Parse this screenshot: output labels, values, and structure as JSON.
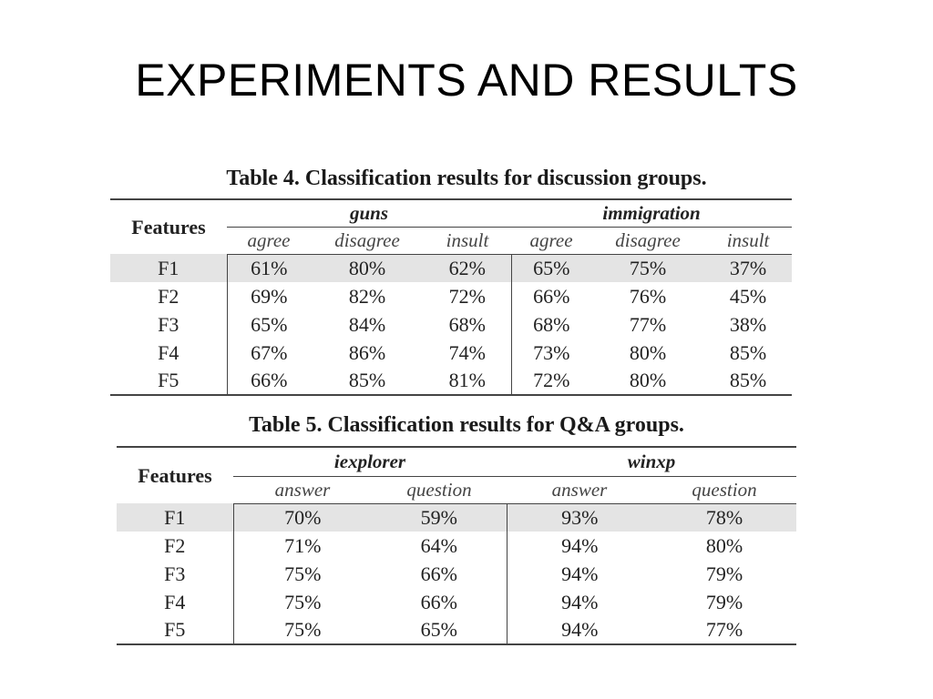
{
  "slide": {
    "title": "EXPERIMENTS AND RESULTS"
  },
  "table4": {
    "caption": "Table 4. Classification results for discussion groups.",
    "features_header": "Features",
    "groups": [
      "guns",
      "immigration"
    ],
    "subheaders": [
      "agree",
      "disagree",
      "insult",
      "agree",
      "disagree",
      "insult"
    ],
    "rows": [
      {
        "feature": "F1",
        "values": [
          "61%",
          "80%",
          "62%",
          "65%",
          "75%",
          "37%"
        ]
      },
      {
        "feature": "F2",
        "values": [
          "69%",
          "82%",
          "72%",
          "66%",
          "76%",
          "45%"
        ]
      },
      {
        "feature": "F3",
        "values": [
          "65%",
          "84%",
          "68%",
          "68%",
          "77%",
          "38%"
        ]
      },
      {
        "feature": "F4",
        "values": [
          "67%",
          "86%",
          "74%",
          "73%",
          "80%",
          "85%"
        ]
      },
      {
        "feature": "F5",
        "values": [
          "66%",
          "85%",
          "81%",
          "72%",
          "80%",
          "85%"
        ]
      }
    ]
  },
  "table5": {
    "caption": "Table 5. Classification results for Q&A groups.",
    "features_header": "Features",
    "groups": [
      "iexplorer",
      "winxp"
    ],
    "subheaders": [
      "answer",
      "question",
      "answer",
      "question"
    ],
    "rows": [
      {
        "feature": "F1",
        "values": [
          "70%",
          "59%",
          "93%",
          "78%"
        ]
      },
      {
        "feature": "F2",
        "values": [
          "71%",
          "64%",
          "94%",
          "80%"
        ]
      },
      {
        "feature": "F3",
        "values": [
          "75%",
          "66%",
          "94%",
          "79%"
        ]
      },
      {
        "feature": "F4",
        "values": [
          "75%",
          "66%",
          "94%",
          "79%"
        ]
      },
      {
        "feature": "F5",
        "values": [
          "75%",
          "65%",
          "94%",
          "77%"
        ]
      }
    ]
  }
}
